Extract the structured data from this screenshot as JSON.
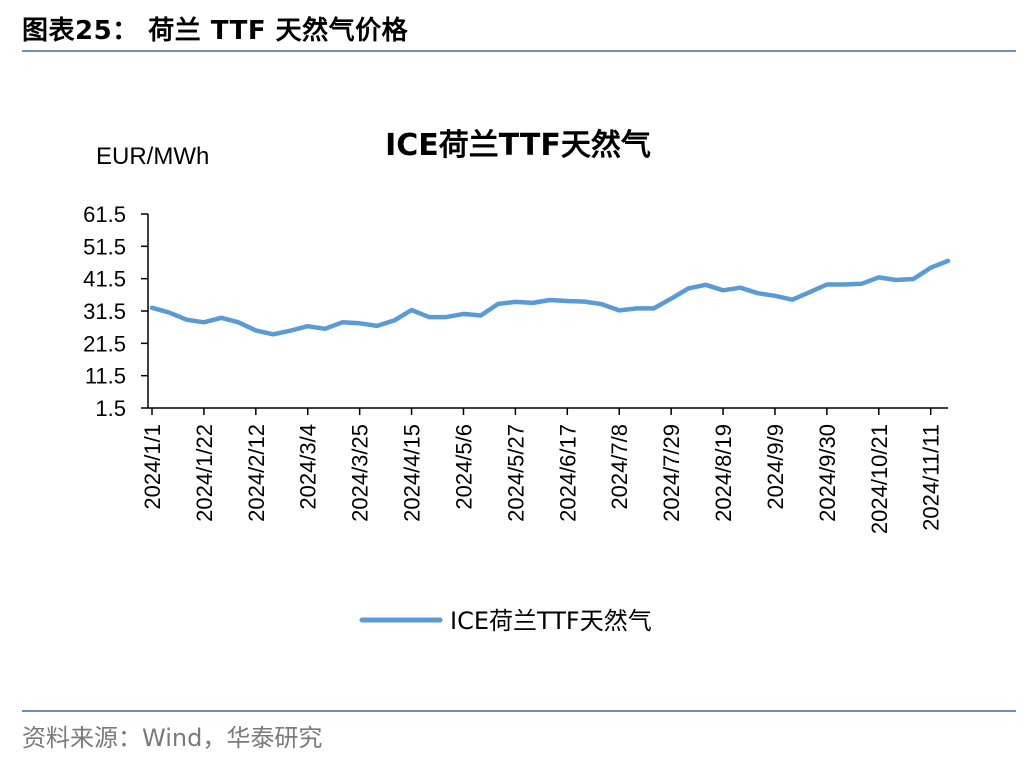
{
  "figure": {
    "title": "图表25： 荷兰 TTF 天然气价格",
    "source": "资料来源：Wind，华泰研究"
  },
  "colors": {
    "series": "#5b9bd5",
    "rule": "#6f8fb7",
    "axis": "#000000"
  },
  "chart_data": {
    "type": "line",
    "title": "ICE荷兰TTF天然气",
    "ylabel": "EUR/MWh",
    "xlabel": "",
    "ylim": [
      1.5,
      61.5
    ],
    "yticks": [
      1.5,
      11.5,
      21.5,
      31.5,
      41.5,
      51.5,
      61.5
    ],
    "x_tick_labels": [
      "2024/1/1",
      "2024/1/22",
      "2024/2/12",
      "2024/3/4",
      "2024/3/25",
      "2024/4/15",
      "2024/5/6",
      "2024/5/27",
      "2024/6/17",
      "2024/7/8",
      "2024/7/29",
      "2024/8/19",
      "2024/9/9",
      "2024/9/30",
      "2024/10/21",
      "2024/11/11"
    ],
    "grid": false,
    "legend_position": "bottom",
    "series": [
      {
        "name": "ICE荷兰TTF天然气",
        "x": [
          "2024/1/1",
          "2024/1/8",
          "2024/1/15",
          "2024/1/22",
          "2024/1/29",
          "2024/2/5",
          "2024/2/12",
          "2024/2/19",
          "2024/2/26",
          "2024/3/4",
          "2024/3/11",
          "2024/3/18",
          "2024/3/25",
          "2024/4/1",
          "2024/4/8",
          "2024/4/15",
          "2024/4/22",
          "2024/4/29",
          "2024/5/6",
          "2024/5/13",
          "2024/5/20",
          "2024/5/27",
          "2024/6/3",
          "2024/6/10",
          "2024/6/17",
          "2024/6/24",
          "2024/7/1",
          "2024/7/8",
          "2024/7/15",
          "2024/7/22",
          "2024/7/29",
          "2024/8/5",
          "2024/8/12",
          "2024/8/19",
          "2024/8/26",
          "2024/9/2",
          "2024/9/9",
          "2024/9/16",
          "2024/9/23",
          "2024/9/30",
          "2024/10/7",
          "2024/10/14",
          "2024/10/21",
          "2024/10/28",
          "2024/11/4",
          "2024/11/11",
          "2024/11/18"
        ],
        "values": [
          32.5,
          31.0,
          28.8,
          28.0,
          29.4,
          28.0,
          25.5,
          24.3,
          25.4,
          26.8,
          26.0,
          28.0,
          27.7,
          26.9,
          28.6,
          31.8,
          29.6,
          29.6,
          30.6,
          30.1,
          33.7,
          34.3,
          34.0,
          34.9,
          34.6,
          34.4,
          33.6,
          31.7,
          32.3,
          32.3,
          35.3,
          38.5,
          39.6,
          37.9,
          38.7,
          37.0,
          36.2,
          35.0,
          37.3,
          39.7,
          39.7,
          39.9,
          41.9,
          41.1,
          41.4,
          44.9,
          47.0
        ]
      }
    ]
  }
}
